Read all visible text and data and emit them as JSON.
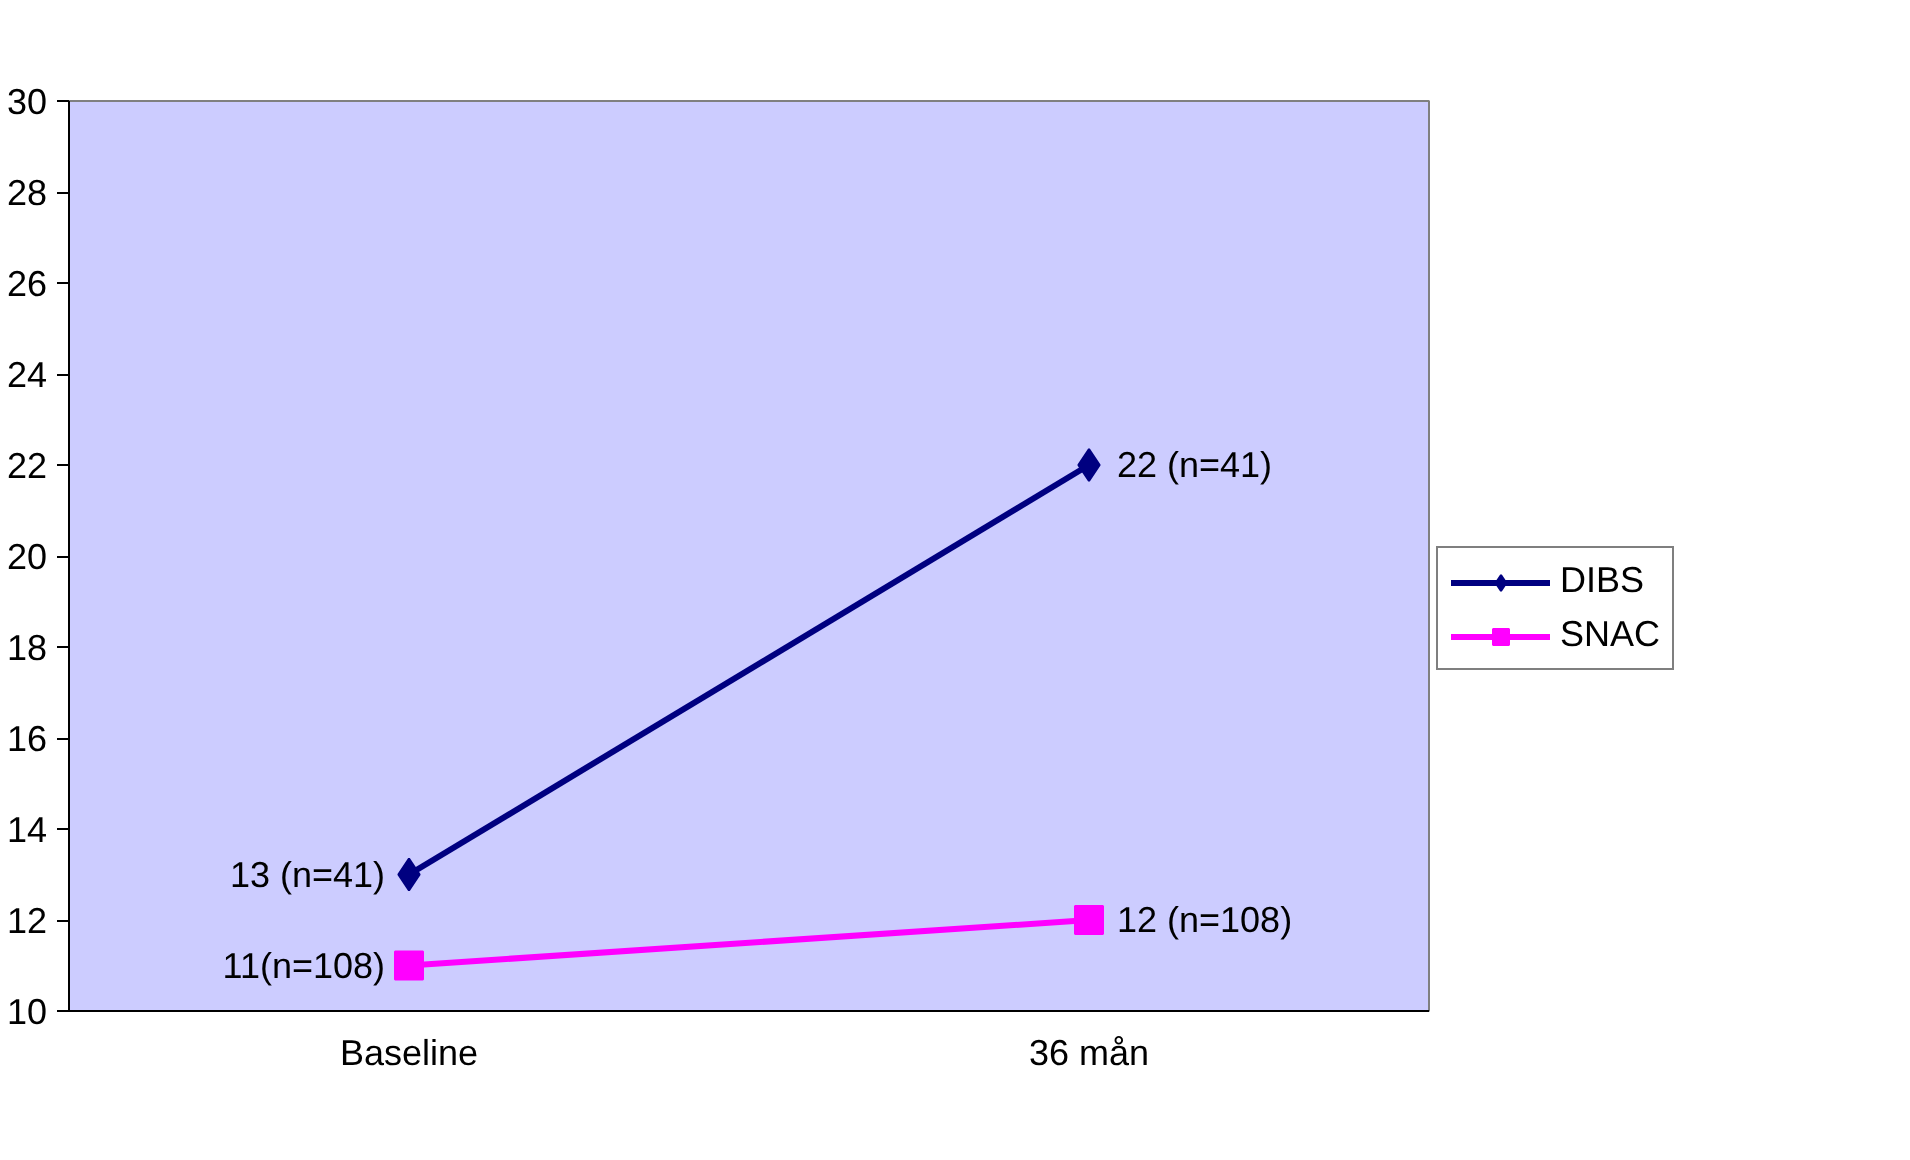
{
  "chart_data": {
    "type": "line",
    "categories": [
      "Baseline",
      "36 mån"
    ],
    "series": [
      {
        "name": "DIBS",
        "color": "#000080",
        "marker": "diamond",
        "values": [
          13,
          22
        ],
        "value_labels": [
          "13 (n=41)",
          "22 (n=41)"
        ]
      },
      {
        "name": "SNAC",
        "color": "#ff00ff",
        "marker": "square",
        "values": [
          11,
          12
        ],
        "value_labels": [
          "11(n=108)",
          "12 (n=108)"
        ]
      }
    ],
    "ylim": [
      10,
      30
    ],
    "yticks": [
      10,
      12,
      14,
      16,
      18,
      20,
      22,
      24,
      26,
      28,
      30
    ],
    "grid": false,
    "legend": "right"
  }
}
